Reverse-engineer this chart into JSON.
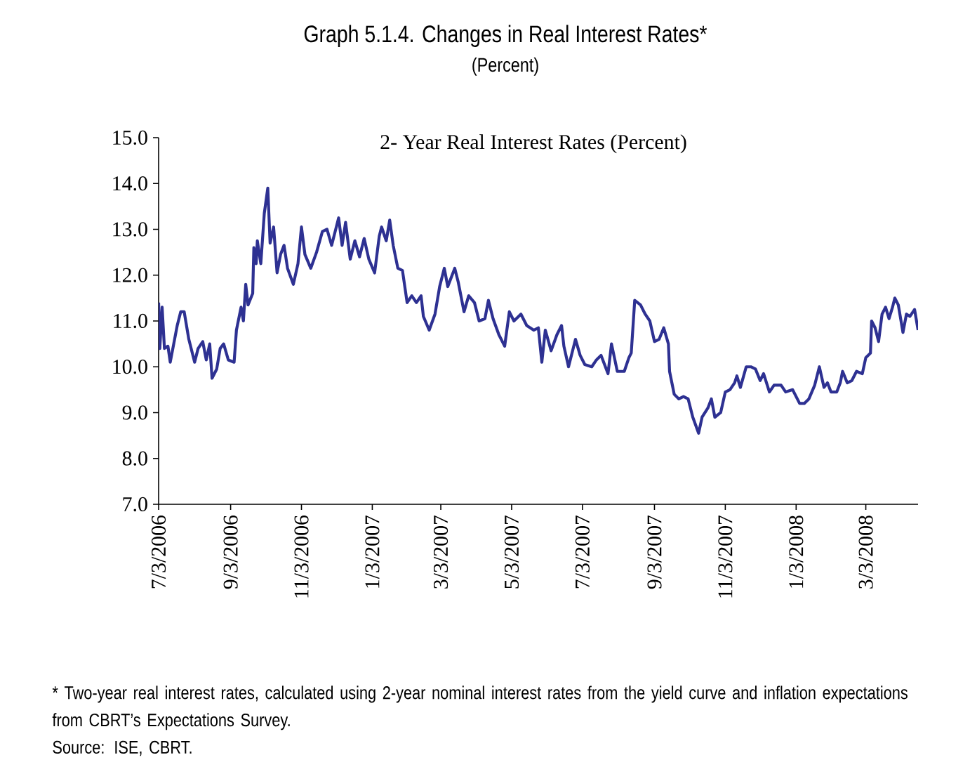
{
  "chart_data": {
    "type": "line",
    "title": "Graph 5.1.4. Changes in Real Interest Rates*",
    "subtitle": "(Percent)",
    "annotations": [
      "2- Year Real Interest Rates (Percent)",
      "* Two-year real interest rates, calculated using 2-year nominal interest rates from the yield curve and inflation expectations from CBRT’s Expectations Survey.",
      "Source: ISE, CBRT."
    ],
    "xlim": [
      "2006-07-03",
      "2008-04-17"
    ],
    "xticks": [
      {
        "value": "2006-07-03",
        "label": "7/3/2006"
      },
      {
        "value": "2006-09-03",
        "label": "9/3/2006"
      },
      {
        "value": "2006-11-03",
        "label": "11/3/2006"
      },
      {
        "value": "2007-01-03",
        "label": "1/3/2007"
      },
      {
        "value": "2007-03-03",
        "label": "3/3/2007"
      },
      {
        "value": "2007-05-03",
        "label": "5/3/2007"
      },
      {
        "value": "2007-07-03",
        "label": "7/3/2007"
      },
      {
        "value": "2007-09-03",
        "label": "9/3/2007"
      },
      {
        "value": "2007-11-03",
        "label": "11/3/2007"
      },
      {
        "value": "2008-01-03",
        "label": "1/3/2008"
      },
      {
        "value": "2008-03-03",
        "label": "3/3/2008"
      }
    ],
    "ylim": [
      7,
      15
    ],
    "yticks": [
      {
        "value": 7,
        "label": "7.0"
      },
      {
        "value": 8,
        "label": "8.0"
      },
      {
        "value": 9,
        "label": "9.0"
      },
      {
        "value": 10,
        "label": "10.0"
      },
      {
        "value": 11,
        "label": "11.0"
      },
      {
        "value": 12,
        "label": "12.0"
      },
      {
        "value": 13,
        "label": "13.0"
      },
      {
        "value": 14,
        "label": "14.0"
      },
      {
        "value": 15,
        "label": "15.0"
      }
    ],
    "grid": false,
    "marker": "none",
    "line_style": "solid",
    "series": [
      {
        "color": "#2e3192",
        "x": [
          "2006-07-03",
          "2006-07-04",
          "2006-07-06",
          "2006-07-08",
          "2006-07-11",
          "2006-07-13",
          "2006-07-16",
          "2006-07-19",
          "2006-07-22",
          "2006-07-25",
          "2006-07-29",
          "2006-08-03",
          "2006-08-06",
          "2006-08-10",
          "2006-08-13",
          "2006-08-16",
          "2006-08-18",
          "2006-08-22",
          "2006-08-25",
          "2006-08-28",
          "2006-09-01",
          "2006-09-06",
          "2006-09-08",
          "2006-09-12",
          "2006-09-14",
          "2006-09-16",
          "2006-09-18",
          "2006-09-22",
          "2006-09-23",
          "2006-09-25",
          "2006-09-26",
          "2006-09-29",
          "2006-10-02",
          "2006-10-05",
          "2006-10-07",
          "2006-10-10",
          "2006-10-13",
          "2006-10-16",
          "2006-10-19",
          "2006-10-22",
          "2006-10-27",
          "2006-10-31",
          "2006-11-03",
          "2006-11-06",
          "2006-11-11",
          "2006-11-16",
          "2006-11-21",
          "2006-11-25",
          "2006-11-29",
          "2006-12-05",
          "2006-12-08",
          "2006-12-11",
          "2006-12-15",
          "2006-12-19",
          "2006-12-23",
          "2006-12-27",
          "2006-12-31",
          "2007-01-05",
          "2007-01-09",
          "2007-01-11",
          "2007-01-15",
          "2007-01-18",
          "2007-01-21",
          "2007-01-25",
          "2007-01-29",
          "2007-02-02",
          "2007-02-06",
          "2007-02-10",
          "2007-02-14",
          "2007-02-16",
          "2007-02-21",
          "2007-02-26",
          "2007-03-02",
          "2007-03-06",
          "2007-03-09",
          "2007-03-12",
          "2007-03-15",
          "2007-03-18",
          "2007-03-23",
          "2007-03-27",
          "2007-04-01",
          "2007-04-05",
          "2007-04-10",
          "2007-04-13",
          "2007-04-17",
          "2007-04-22",
          "2007-04-27",
          "2007-05-01",
          "2007-05-05",
          "2007-05-11",
          "2007-05-16",
          "2007-05-22",
          "2007-05-26",
          "2007-05-29",
          "2007-06-01",
          "2007-06-06",
          "2007-06-11",
          "2007-06-15",
          "2007-06-17",
          "2007-06-21",
          "2007-06-27",
          "2007-07-01",
          "2007-07-05",
          "2007-07-11",
          "2007-07-15",
          "2007-07-19",
          "2007-07-25",
          "2007-07-28",
          "2007-08-02",
          "2007-08-08",
          "2007-08-12",
          "2007-08-14",
          "2007-08-17",
          "2007-08-22",
          "2007-08-26",
          "2007-08-30",
          "2007-09-03",
          "2007-09-07",
          "2007-09-11",
          "2007-09-15",
          "2007-09-16",
          "2007-09-20",
          "2007-09-24",
          "2007-09-28",
          "2007-10-02",
          "2007-10-06",
          "2007-10-11",
          "2007-10-14",
          "2007-10-19",
          "2007-10-22",
          "2007-10-25",
          "2007-10-30",
          "2007-11-03",
          "2007-11-07",
          "2007-11-11",
          "2007-11-13",
          "2007-11-16",
          "2007-11-21",
          "2007-11-25",
          "2007-11-29",
          "2007-12-03",
          "2007-12-06",
          "2007-12-11",
          "2007-12-15",
          "2007-12-21",
          "2007-12-25",
          "2007-12-31",
          "2008-01-06",
          "2008-01-10",
          "2008-01-14",
          "2008-01-19",
          "2008-01-23",
          "2008-01-27",
          "2008-01-30",
          "2008-02-02",
          "2008-02-07",
          "2008-02-10",
          "2008-02-12",
          "2008-02-16",
          "2008-02-20",
          "2008-02-24",
          "2008-02-29",
          "2008-03-03",
          "2008-03-07",
          "2008-03-08",
          "2008-03-11",
          "2008-03-14",
          "2008-03-17",
          "2008-03-20",
          "2008-03-23",
          "2008-03-26",
          "2008-03-28",
          "2008-03-31",
          "2008-04-04",
          "2008-04-07",
          "2008-04-10",
          "2008-04-14",
          "2008-04-17"
        ],
        "values": [
          11.4,
          10.4,
          11.3,
          10.4,
          10.45,
          10.1,
          10.5,
          10.9,
          11.2,
          11.2,
          10.6,
          10.1,
          10.4,
          10.55,
          10.15,
          10.5,
          9.75,
          9.95,
          10.4,
          10.5,
          10.15,
          10.1,
          10.8,
          11.3,
          11.0,
          11.8,
          11.35,
          11.6,
          12.6,
          12.25,
          12.75,
          12.25,
          13.35,
          13.9,
          12.7,
          13.05,
          12.05,
          12.45,
          12.65,
          12.15,
          11.8,
          12.25,
          13.05,
          12.45,
          12.15,
          12.5,
          12.95,
          13.0,
          12.65,
          13.25,
          12.65,
          13.15,
          12.35,
          12.75,
          12.4,
          12.8,
          12.35,
          12.05,
          12.85,
          13.05,
          12.75,
          13.2,
          12.65,
          12.15,
          12.1,
          11.4,
          11.55,
          11.4,
          11.55,
          11.1,
          10.8,
          11.15,
          11.75,
          12.15,
          11.75,
          11.95,
          12.15,
          11.85,
          11.2,
          11.55,
          11.4,
          11.0,
          11.05,
          11.45,
          11.05,
          10.7,
          10.45,
          11.2,
          11.0,
          11.15,
          10.9,
          10.8,
          10.85,
          10.1,
          10.8,
          10.35,
          10.7,
          10.9,
          10.45,
          10.0,
          10.6,
          10.25,
          10.05,
          10.0,
          10.15,
          10.25,
          9.85,
          10.5,
          9.9,
          9.9,
          10.2,
          10.3,
          11.45,
          11.35,
          11.15,
          11.0,
          10.55,
          10.6,
          10.85,
          10.5,
          9.9,
          9.4,
          9.3,
          9.35,
          9.3,
          8.9,
          8.55,
          8.9,
          9.1,
          9.3,
          8.9,
          9.0,
          9.45,
          9.5,
          9.65,
          9.8,
          9.55,
          10.0,
          10.0,
          9.95,
          9.7,
          9.85,
          9.45,
          9.6,
          9.6,
          9.45,
          9.5,
          9.2,
          9.2,
          9.3,
          9.6,
          10.0,
          9.55,
          9.65,
          9.45,
          9.45,
          9.65,
          9.9,
          9.65,
          9.7,
          9.9,
          9.85,
          10.2,
          10.3,
          11.0,
          10.85,
          10.55,
          11.15,
          11.3,
          11.05,
          11.3,
          11.5,
          11.35,
          10.75,
          11.15,
          11.1,
          11.25,
          10.8
        ]
      }
    ]
  }
}
